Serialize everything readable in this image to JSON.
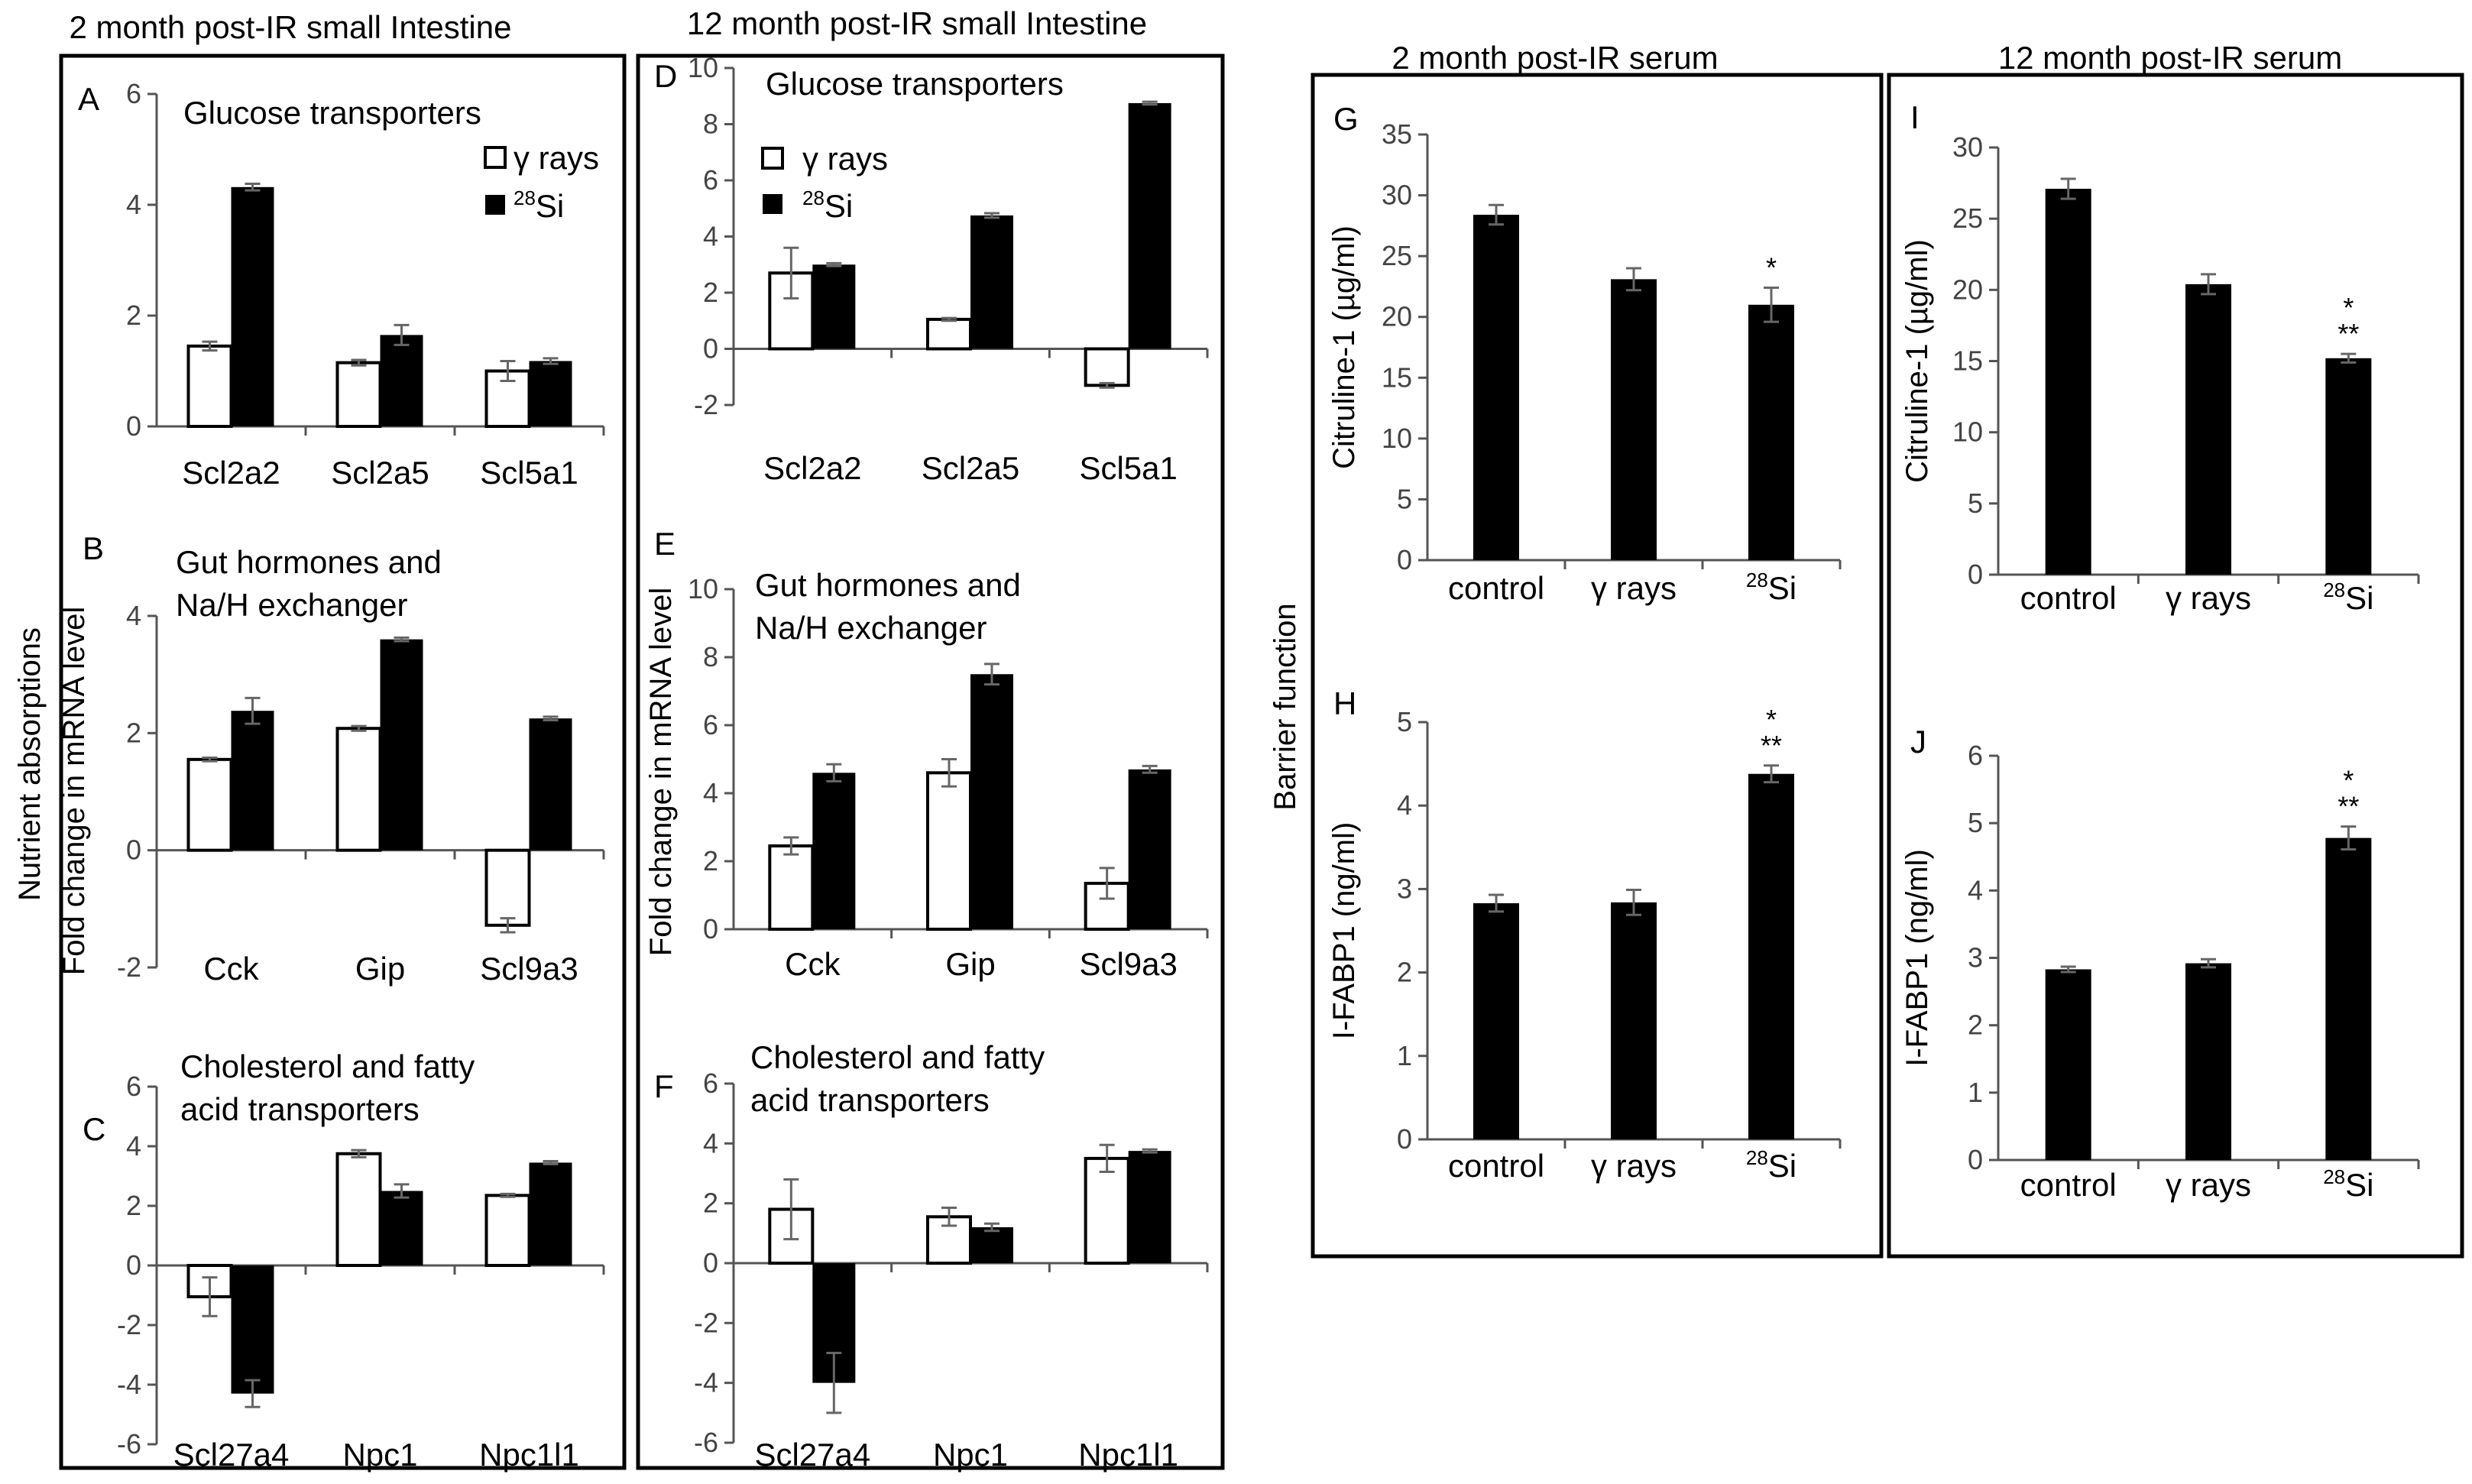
{
  "headers": {
    "small_2m": "2 month post-IR  small Intestine",
    "small_12m": "12 month post-IR  small Intestine",
    "serum_2m": "2 month post-IR  serum",
    "serum_12m": "12 month post-IR  serum"
  },
  "side_labels": {
    "nutrient": "Nutrient absorptions",
    "fold_change": "Fold change in mRNA level",
    "barrier": "Barrier function"
  },
  "legend": {
    "gamma": "γ rays",
    "si_sup": "28",
    "si": "Si"
  },
  "chart_data": [
    {
      "id": "A",
      "type": "bar",
      "title": "Glucose transporters",
      "categories": [
        "Scl2a2",
        "Scl2a5",
        "Scl5a1"
      ],
      "series": [
        {
          "name": "γ rays",
          "values": [
            1.45,
            1.15,
            1.0
          ],
          "errors": [
            0.08,
            0.05,
            0.18
          ]
        },
        {
          "name": "28Si",
          "values": [
            4.32,
            1.65,
            1.18
          ],
          "errors": [
            0.06,
            0.18,
            0.05
          ]
        }
      ],
      "ylim": [
        0,
        6
      ],
      "yticks": [
        "0",
        "2",
        "4",
        "6"
      ]
    },
    {
      "id": "B",
      "type": "bar",
      "title": "Gut hormones and Na/H exchanger",
      "categories": [
        "Cck",
        "Gip",
        "Scl9a3"
      ],
      "series": [
        {
          "name": "γ rays",
          "values": [
            1.55,
            2.08,
            -1.28
          ],
          "errors": [
            0.03,
            0.04,
            0.12
          ]
        },
        {
          "name": "28Si",
          "values": [
            2.38,
            3.6,
            2.25
          ],
          "errors": [
            0.22,
            0.03,
            0.03
          ]
        }
      ],
      "ylim": [
        -2,
        4
      ],
      "yticks": [
        "-2",
        "0",
        "2",
        "4"
      ]
    },
    {
      "id": "C",
      "type": "bar",
      "title": "Cholesterol and fatty acid transporters",
      "categories": [
        "Scl27a4",
        "Npc1",
        "Npc1l1"
      ],
      "series": [
        {
          "name": "γ rays",
          "values": [
            -1.05,
            3.75,
            2.35
          ],
          "errors": [
            0.65,
            0.12,
            0.05
          ]
        },
        {
          "name": "28Si",
          "values": [
            -4.3,
            2.5,
            3.45
          ],
          "errors": [
            0.45,
            0.22,
            0.05
          ]
        }
      ],
      "ylim": [
        -6,
        6
      ],
      "yticks": [
        "-6",
        "-4",
        "-2",
        "0",
        "2",
        "4",
        "6"
      ]
    },
    {
      "id": "D",
      "type": "bar",
      "title": "Glucose transporters",
      "categories": [
        "Scl2a2",
        "Scl2a5",
        "Scl5a1"
      ],
      "series": [
        {
          "name": "γ rays",
          "values": [
            2.7,
            1.05,
            -1.3
          ],
          "errors": [
            0.9,
            0.05,
            0.08
          ]
        },
        {
          "name": "28Si",
          "values": [
            3.0,
            4.75,
            8.75
          ],
          "errors": [
            0.05,
            0.08,
            0.05
          ]
        }
      ],
      "ylim": [
        -2,
        10
      ],
      "yticks": [
        "-2",
        "0",
        "2",
        "4",
        "6",
        "8",
        "10"
      ]
    },
    {
      "id": "E",
      "type": "bar",
      "title": "Gut hormones and Na/H exchanger",
      "categories": [
        "Cck",
        "Gip",
        "Scl9a3"
      ],
      "series": [
        {
          "name": "γ rays",
          "values": [
            2.45,
            4.6,
            1.35
          ],
          "errors": [
            0.25,
            0.4,
            0.45
          ]
        },
        {
          "name": "28Si",
          "values": [
            4.6,
            7.5,
            4.7
          ],
          "errors": [
            0.25,
            0.3,
            0.1
          ]
        }
      ],
      "ylim": [
        0,
        10
      ],
      "yticks": [
        "0",
        "2",
        "4",
        "6",
        "8",
        "10"
      ]
    },
    {
      "id": "F",
      "type": "bar",
      "title": "Cholesterol and fatty acid transporters",
      "categories": [
        "Scl27a4",
        "Npc1",
        "Npc1l1"
      ],
      "series": [
        {
          "name": "γ rays",
          "values": [
            1.8,
            1.55,
            3.5
          ],
          "errors": [
            1.0,
            0.3,
            0.45
          ]
        },
        {
          "name": "28Si",
          "values": [
            -4.0,
            1.2,
            3.75
          ],
          "errors": [
            1.0,
            0.12,
            0.05
          ]
        }
      ],
      "ylim": [
        -6,
        6
      ],
      "yticks": [
        "-6",
        "-4",
        "-2",
        "0",
        "2",
        "4",
        "6"
      ]
    },
    {
      "id": "G",
      "type": "bar",
      "ylabel": "Citruline-1 (µg/ml)",
      "categories": [
        "control",
        "γ rays",
        "28Si"
      ],
      "series": [
        {
          "name": "Citruline-1",
          "values": [
            28.4,
            23.1,
            21.0
          ],
          "errors": [
            0.8,
            0.9,
            1.4
          ]
        }
      ],
      "significance": [
        "",
        "",
        "*"
      ],
      "ylim": [
        0,
        35
      ],
      "yticks": [
        "0",
        "5",
        "10",
        "15",
        "20",
        "25",
        "30",
        "35"
      ]
    },
    {
      "id": "H",
      "type": "bar",
      "ylabel": "I-FABP1 (ng/ml)",
      "categories": [
        "control",
        "γ rays",
        "28Si"
      ],
      "series": [
        {
          "name": "I-FABP1",
          "values": [
            2.83,
            2.84,
            4.38
          ],
          "errors": [
            0.1,
            0.15,
            0.1
          ]
        }
      ],
      "significance": [
        "",
        "",
        "*\n**"
      ],
      "ylim": [
        0,
        5
      ],
      "yticks": [
        "0",
        "1",
        "2",
        "3",
        "4",
        "5"
      ]
    },
    {
      "id": "I",
      "type": "bar",
      "ylabel": "Citruline-1 (µg/ml)",
      "categories": [
        "control",
        "γ rays",
        "28Si"
      ],
      "series": [
        {
          "name": "Citruline-1",
          "values": [
            27.1,
            20.4,
            15.2
          ],
          "errors": [
            0.7,
            0.7,
            0.3
          ]
        }
      ],
      "significance": [
        "",
        "",
        "*\n**"
      ],
      "ylim": [
        0,
        30
      ],
      "yticks": [
        "0",
        "5",
        "10",
        "15",
        "20",
        "25",
        "30"
      ]
    },
    {
      "id": "J",
      "type": "bar",
      "ylabel": "I-FABP1 (ng/ml)",
      "categories": [
        "control",
        "γ rays",
        "28Si"
      ],
      "series": [
        {
          "name": "I-FABP1",
          "values": [
            2.83,
            2.92,
            4.78
          ],
          "errors": [
            0.04,
            0.06,
            0.17
          ]
        }
      ],
      "significance": [
        "",
        "",
        "*\n**"
      ],
      "ylim": [
        0,
        6
      ],
      "yticks": [
        "0",
        "1",
        "2",
        "3",
        "4",
        "5",
        "6"
      ]
    }
  ]
}
